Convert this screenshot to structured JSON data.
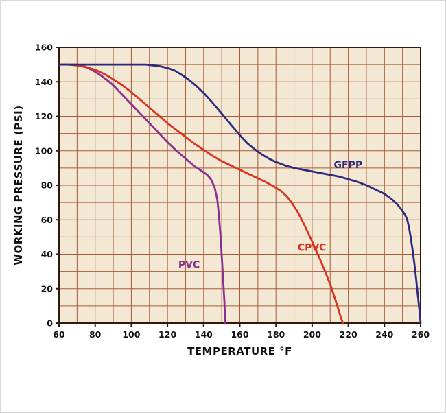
{
  "chart_data": {
    "type": "line",
    "title": "",
    "xlabel": "TEMPERATURE °F",
    "ylabel": "WORKING PRESSURE (PSI)",
    "xlim": [
      60,
      260
    ],
    "ylim": [
      0,
      160
    ],
    "x_tick_step": 20,
    "y_tick_step": 20,
    "grid_step_x": 10,
    "grid_step_y": 10,
    "grid": "on",
    "legend_position": "inline-labels",
    "colors": {
      "page_bg": "#ffffff",
      "plot_bg": "#f2e8d3",
      "grid": "#aa5a36",
      "border": "#33190d",
      "tick_text": "#111111"
    },
    "series": [
      {
        "name": "PVC",
        "color": "#8b2f8f",
        "label_pos": [
          126,
          32
        ],
        "points": [
          [
            60,
            150
          ],
          [
            65,
            150
          ],
          [
            70,
            150
          ],
          [
            74,
            149
          ],
          [
            78,
            147
          ],
          [
            82,
            144.5
          ],
          [
            86,
            141.5
          ],
          [
            90,
            138
          ],
          [
            95,
            132.5
          ],
          [
            100,
            127
          ],
          [
            105,
            121.5
          ],
          [
            110,
            116
          ],
          [
            115,
            110.5
          ],
          [
            120,
            105
          ],
          [
            125,
            100
          ],
          [
            130,
            95.5
          ],
          [
            135,
            91
          ],
          [
            140,
            87.5
          ],
          [
            142,
            86
          ],
          [
            144,
            83.5
          ],
          [
            146,
            79
          ],
          [
            147.5,
            72
          ],
          [
            148.5,
            62
          ],
          [
            149.5,
            48
          ],
          [
            150.5,
            30
          ],
          [
            151.5,
            12
          ],
          [
            152,
            0
          ]
        ]
      },
      {
        "name": "CPVC",
        "color": "#d8341f",
        "label_pos": [
          192,
          42
        ],
        "points": [
          [
            60,
            150
          ],
          [
            65,
            150
          ],
          [
            70,
            149.5
          ],
          [
            75,
            148.5
          ],
          [
            80,
            147
          ],
          [
            85,
            144.5
          ],
          [
            90,
            141.5
          ],
          [
            95,
            138
          ],
          [
            100,
            134
          ],
          [
            105,
            129.5
          ],
          [
            110,
            125
          ],
          [
            115,
            120.5
          ],
          [
            120,
            116
          ],
          [
            125,
            112
          ],
          [
            130,
            108
          ],
          [
            135,
            104
          ],
          [
            140,
            100.5
          ],
          [
            145,
            97
          ],
          [
            150,
            94
          ],
          [
            155,
            91.5
          ],
          [
            160,
            89
          ],
          [
            165,
            86.5
          ],
          [
            170,
            84
          ],
          [
            175,
            81.5
          ],
          [
            180,
            78.5
          ],
          [
            183,
            76.5
          ],
          [
            186,
            73.5
          ],
          [
            189,
            69.5
          ],
          [
            192,
            64.5
          ],
          [
            195,
            58.5
          ],
          [
            198,
            52
          ],
          [
            201,
            45
          ],
          [
            204,
            38
          ],
          [
            207,
            30.5
          ],
          [
            210,
            22.5
          ],
          [
            213,
            13
          ],
          [
            216,
            3
          ],
          [
            217,
            0
          ]
        ]
      },
      {
        "name": "GFPP",
        "color": "#2d2a7e",
        "label_pos": [
          212,
          90
        ],
        "points": [
          [
            60,
            150
          ],
          [
            70,
            150
          ],
          [
            80,
            150
          ],
          [
            90,
            150
          ],
          [
            100,
            150
          ],
          [
            108,
            150
          ],
          [
            112,
            149.5
          ],
          [
            116,
            149
          ],
          [
            120,
            148
          ],
          [
            124,
            146.5
          ],
          [
            128,
            144
          ],
          [
            132,
            141
          ],
          [
            136,
            137.5
          ],
          [
            140,
            133.5
          ],
          [
            144,
            129
          ],
          [
            148,
            124
          ],
          [
            152,
            119
          ],
          [
            156,
            114
          ],
          [
            160,
            109
          ],
          [
            164,
            104.5
          ],
          [
            168,
            101
          ],
          [
            172,
            98
          ],
          [
            176,
            95.5
          ],
          [
            180,
            93.5
          ],
          [
            185,
            91.5
          ],
          [
            190,
            90
          ],
          [
            195,
            89
          ],
          [
            200,
            88
          ],
          [
            205,
            87
          ],
          [
            210,
            86
          ],
          [
            215,
            85
          ],
          [
            220,
            83.5
          ],
          [
            225,
            82
          ],
          [
            230,
            80
          ],
          [
            235,
            77.5
          ],
          [
            240,
            75
          ],
          [
            244,
            72
          ],
          [
            247,
            69
          ],
          [
            249,
            66.5
          ],
          [
            251,
            63.5
          ],
          [
            252.5,
            60.5
          ],
          [
            253.5,
            56
          ],
          [
            254.5,
            50
          ],
          [
            255.5,
            43
          ],
          [
            256.5,
            35
          ],
          [
            257.5,
            26
          ],
          [
            258.5,
            16
          ],
          [
            259.5,
            6
          ],
          [
            260,
            0
          ]
        ]
      }
    ]
  }
}
